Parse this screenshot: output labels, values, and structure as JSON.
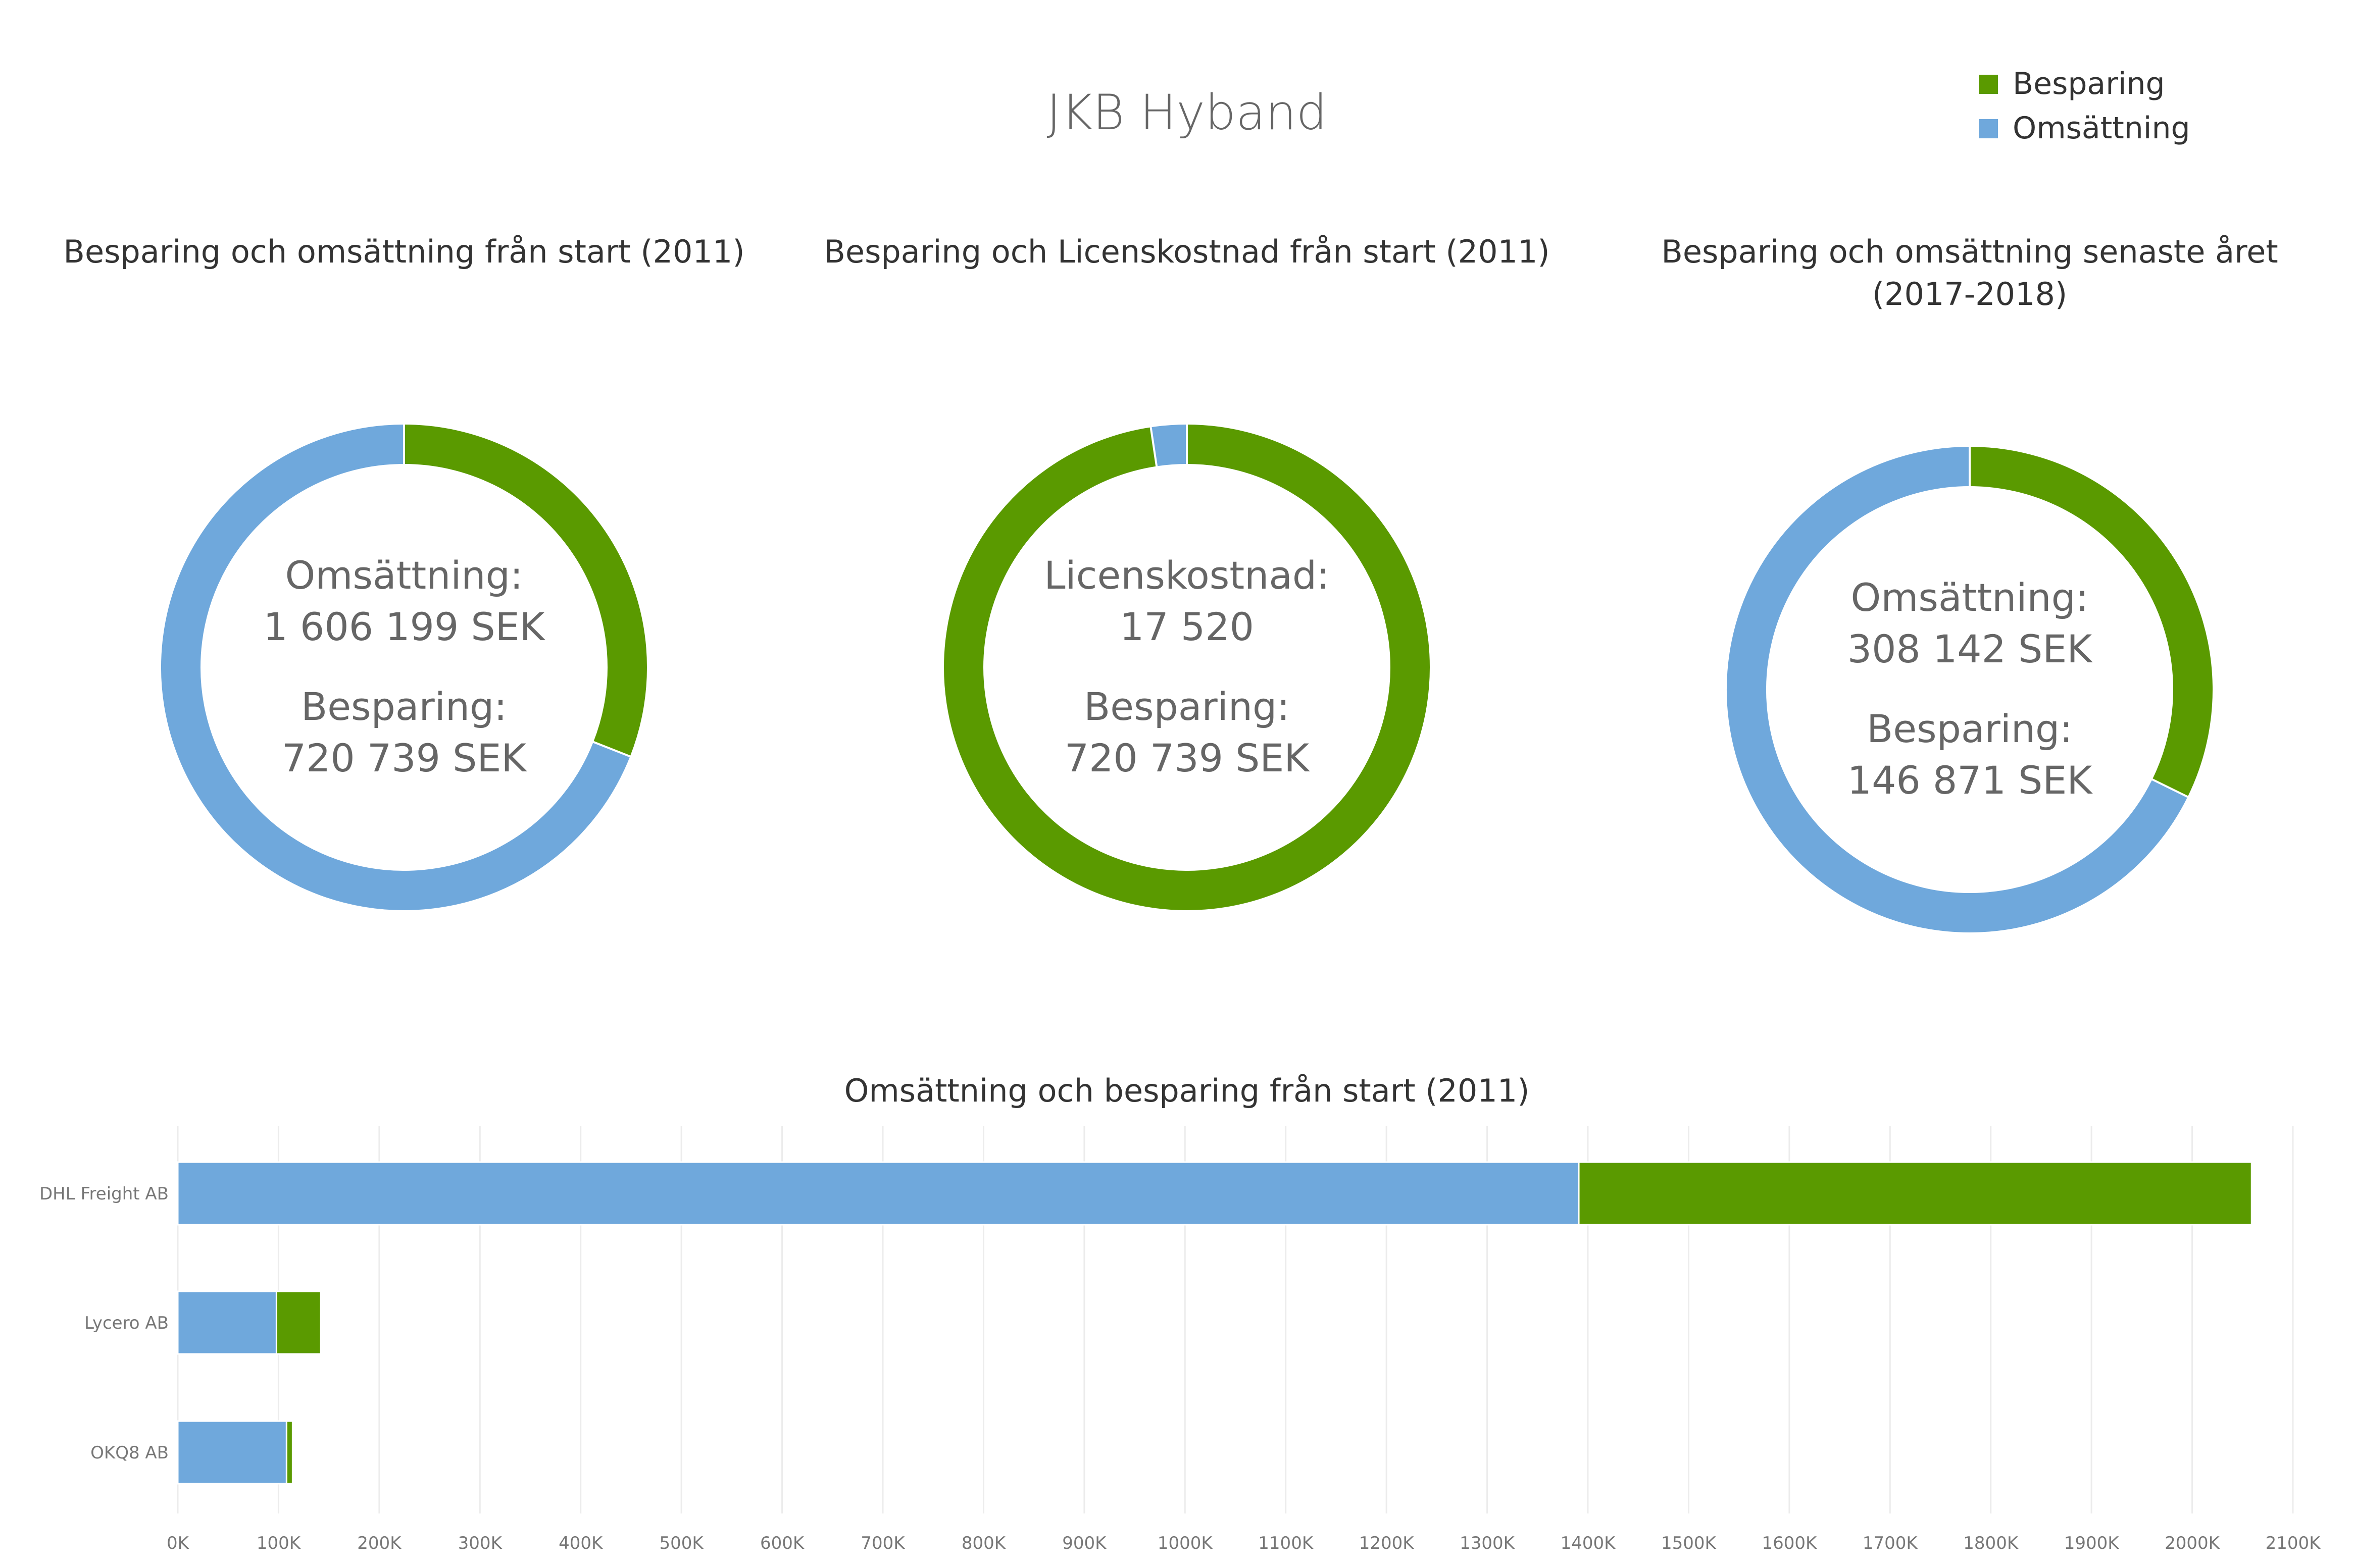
{
  "page": {
    "title": "JKB Hyband"
  },
  "legend": {
    "items": [
      {
        "label": "Besparing",
        "color": "#5a9a00"
      },
      {
        "label": "Omsättning",
        "color": "#6fa8dc"
      }
    ]
  },
  "colors": {
    "besparing": "#5a9a00",
    "omsattning": "#6fa8dc",
    "licens": "#6fa8dc"
  },
  "chart_data": [
    {
      "type": "pie",
      "style": "donut",
      "title_lines": [
        "Besparing och omsättning från start (2011)"
      ],
      "slices": [
        {
          "name": "Besparing",
          "value": 720739
        },
        {
          "name": "Omsättning",
          "value": 1606199
        }
      ],
      "center_text": [
        "Omsättning:",
        "1 606 199 SEK",
        "Besparing:",
        "720 739 SEK"
      ]
    },
    {
      "type": "pie",
      "style": "donut",
      "title_lines": [
        "Besparing och Licenskostnad från start (2011)"
      ],
      "slices": [
        {
          "name": "Besparing",
          "value": 720739
        },
        {
          "name": "Licenskostnad",
          "value": 17520
        }
      ],
      "center_text": [
        "Licenskostnad:",
        "17 520",
        "Besparing:",
        "720 739 SEK"
      ]
    },
    {
      "type": "pie",
      "style": "donut",
      "title_lines": [
        "Besparing och omsättning senaste året",
        "(2017-2018)"
      ],
      "slices": [
        {
          "name": "Besparing",
          "value": 146871
        },
        {
          "name": "Omsättning",
          "value": 308142
        }
      ],
      "center_text": [
        "Omsättning:",
        "308 142 SEK",
        "Besparing:",
        "146 871 SEK"
      ]
    },
    {
      "type": "bar",
      "orientation": "horizontal",
      "stacked": true,
      "title": "Omsättning och besparing från start (2011)",
      "categories": [
        "DHL Freight AB",
        "Lycero AB",
        "OKQ8 AB"
      ],
      "series": [
        {
          "name": "Omsättning",
          "values": [
            1391000,
            98000,
            108000
          ]
        },
        {
          "name": "Besparing",
          "values": [
            668000,
            44000,
            6000
          ]
        }
      ],
      "xlim": [
        0,
        2100000
      ],
      "xticks": [
        "0K",
        "100K",
        "200K",
        "300K",
        "400K",
        "500K",
        "600K",
        "700K",
        "800K",
        "900K",
        "1000K",
        "1100K",
        "1200K",
        "1300K",
        "1400K",
        "1500K",
        "1600K",
        "1700K",
        "1800K",
        "1900K",
        "2000K",
        "2100K"
      ],
      "grid": true
    }
  ]
}
